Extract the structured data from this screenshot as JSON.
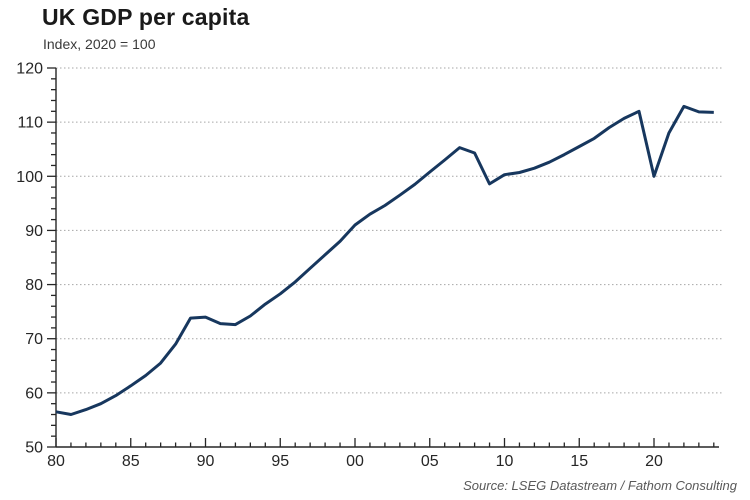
{
  "header": {
    "title": "UK GDP per capita",
    "subtitle": "Index, 2020 = 100"
  },
  "source": "Source: LSEG Datastream / Fathom Consulting",
  "colors": {
    "line": "#17375e",
    "axis": "#262626",
    "gridline": "#a6a6a6",
    "tick_label": "#262626",
    "background": "#ffffff"
  },
  "chart_data": {
    "type": "line",
    "title": "UK GDP per capita",
    "subtitle": "Index, 2020 = 100",
    "series_name": "UK GDP per capita, index (2020 = 100)",
    "x": [
      1980,
      1981,
      1982,
      1983,
      1984,
      1985,
      1986,
      1987,
      1988,
      1989,
      1990,
      1991,
      1992,
      1993,
      1994,
      1995,
      1996,
      1997,
      1998,
      1999,
      2000,
      2001,
      2002,
      2003,
      2004,
      2005,
      2006,
      2007,
      2008,
      2009,
      2010,
      2011,
      2012,
      2013,
      2014,
      2015,
      2016,
      2017,
      2018,
      2019,
      2020,
      2021,
      2022,
      2023,
      2024
    ],
    "values": [
      56.5,
      56.0,
      56.9,
      58.0,
      59.5,
      61.3,
      63.2,
      65.5,
      69.0,
      73.8,
      74.0,
      72.8,
      72.6,
      74.2,
      76.4,
      78.3,
      80.5,
      83.0,
      85.5,
      88.0,
      91.0,
      93.0,
      94.6,
      96.5,
      98.5,
      100.8,
      103.0,
      105.3,
      104.3,
      98.6,
      100.3,
      100.7,
      101.5,
      102.6,
      104.0,
      105.5,
      107.0,
      109.0,
      110.7,
      112.0,
      100.0,
      108.0,
      112.9,
      111.9,
      111.8
    ],
    "xlabel": "",
    "ylabel": "",
    "ylim": [
      50,
      120
    ],
    "xlim": [
      1980,
      2024.3
    ],
    "y_major_tick_step": 10,
    "y_minor_tick_step": 2,
    "y_tick_labels": [
      "50",
      "60",
      "70",
      "80",
      "90",
      "100",
      "110",
      "120"
    ],
    "x_major_tick_years": [
      1980,
      1985,
      1990,
      1995,
      2000,
      2005,
      2010,
      2015,
      2020
    ],
    "x_major_tick_labels": [
      "80",
      "85",
      "90",
      "95",
      "00",
      "05",
      "10",
      "15",
      "20"
    ],
    "x_minor_tick_step": 1,
    "grid": "horizontal dotted at y majors (60-120)",
    "legend": "none",
    "markers": "none"
  }
}
